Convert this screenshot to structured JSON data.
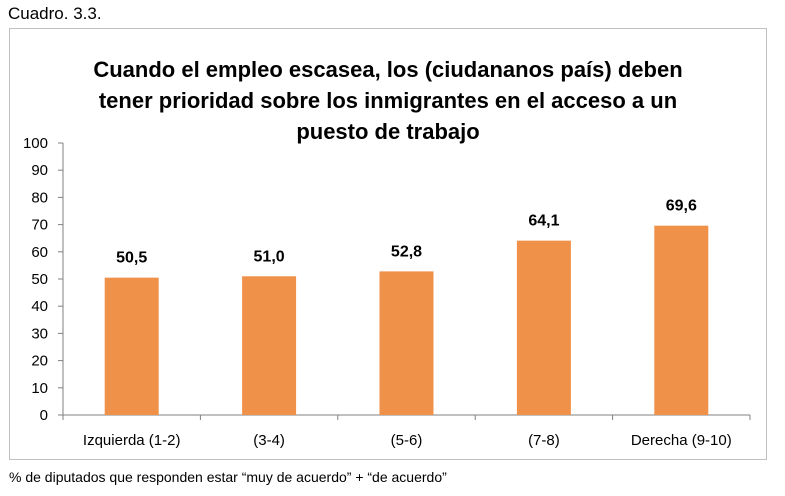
{
  "caption": "Cuadro. 3.3.",
  "footnote": "% de diputados que responden estar “muy de acuerdo” + “de acuerdo”",
  "colors": {
    "bar": "#F0914A",
    "axis": "#808080",
    "frame": "#BFBFBF"
  },
  "chart_data": {
    "type": "bar",
    "title": "Cuando el empleo escasea, los (ciudananos país) deben tener prioridad sobre los inmigrantes en el acceso a un puesto de trabajo",
    "title_lines": [
      "Cuando el empleo escasea, los (ciudananos país) deben",
      "tener prioridad sobre los inmigrantes en el acceso a un",
      "puesto de trabajo"
    ],
    "categories": [
      "Izquierda (1-2)",
      "(3-4)",
      "(5-6)",
      "(7-8)",
      "Derecha (9-10)"
    ],
    "values": [
      50.5,
      51.0,
      52.8,
      64.1,
      69.6
    ],
    "data_labels": [
      "50,5",
      "51,0",
      "52,8",
      "64,1",
      "69,6"
    ],
    "yticks": [
      "0",
      "10",
      "20",
      "30",
      "40",
      "50",
      "60",
      "70",
      "80",
      "90",
      "100"
    ],
    "ylim": [
      0,
      100
    ],
    "xlabel": "",
    "ylabel": "",
    "grid": false,
    "legend": "none"
  }
}
